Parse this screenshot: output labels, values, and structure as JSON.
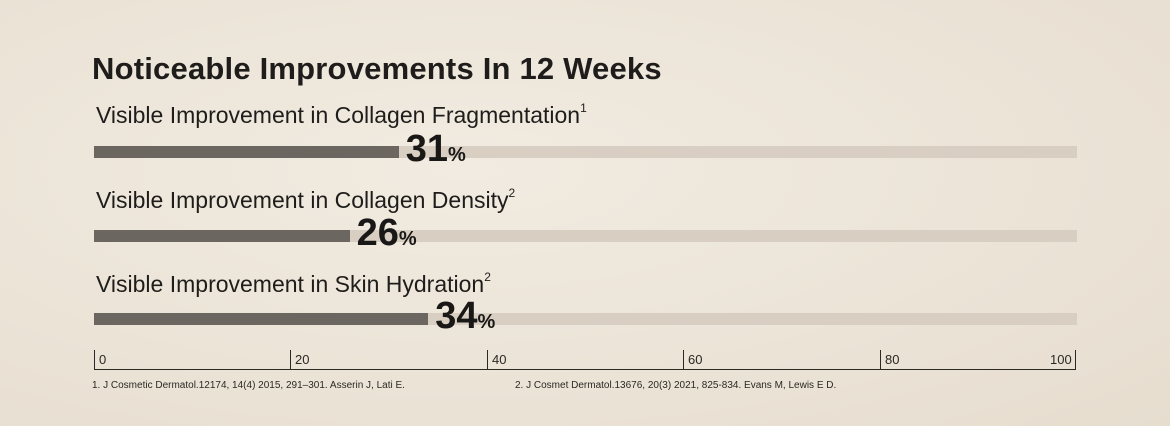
{
  "chart_data": {
    "type": "bar",
    "orientation": "horizontal",
    "title": "Noticeable Improvements In 12 Weeks",
    "categories": [
      "Visible Improvement in Collagen Fragmentation",
      "Visible Improvement in Collagen Density",
      "Visible Improvement in Skin Hydration"
    ],
    "superscripts": [
      "1",
      "2",
      "2"
    ],
    "values": [
      31,
      26,
      34
    ],
    "value_labels": [
      "31",
      "26",
      "34"
    ],
    "unit": "%",
    "xlim": [
      0,
      100
    ],
    "ticks": [
      "0",
      "20",
      "40",
      "60",
      "80",
      "100"
    ],
    "grid": false,
    "colors": {
      "fill": "#6b665f",
      "track": "#d8cfc2"
    }
  },
  "footnotes": [
    "1. J Cosmetic Dermatol.12174, 14(4) 2015, 291–301. Asserin J, Lati E.",
    "2. J Cosmet Dermatol.13676, 20(3) 2021, 825-834. Evans M, Lewis E D."
  ]
}
